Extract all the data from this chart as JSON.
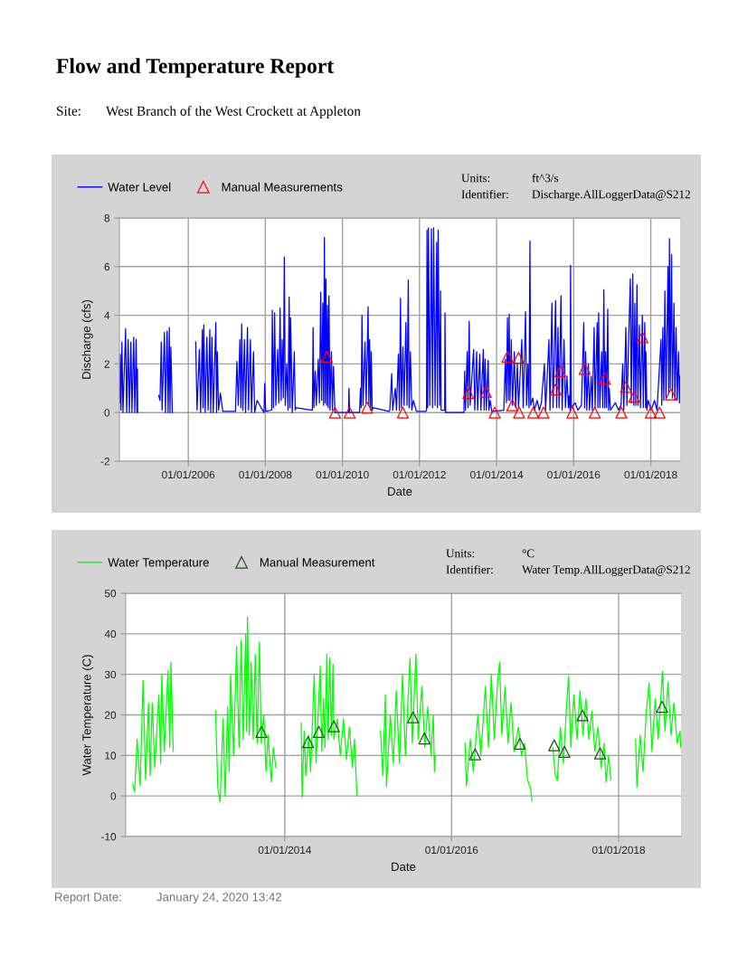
{
  "chart_data": [
    {
      "type": "line",
      "title": "Flow and Temperature Report",
      "subtitle": "Site:\tWest Branch of the West Crockett at Appleton",
      "xlabel": "Date",
      "ylabel": "Discharge (cfs)",
      "annotations": [
        "Units:\tft^3/s",
        "Identifier:\tDischarge.AllLoggerData@S212"
      ],
      "xlim": [
        "2004-03-19",
        "2018-10-06"
      ],
      "ylim": [
        -2,
        8
      ],
      "xticks": [
        {
          "value": "2006-01-01",
          "label": "01/01/2006"
        },
        {
          "value": "2008-01-01",
          "label": "01/01/2008"
        },
        {
          "value": "2010-01-01",
          "label": "01/01/2010"
        },
        {
          "value": "2012-01-01",
          "label": "01/01/2012"
        },
        {
          "value": "2014-01-01",
          "label": "01/01/2014"
        },
        {
          "value": "2016-01-01",
          "label": "01/01/2016"
        },
        {
          "value": "2018-01-01",
          "label": "01/01/2018"
        }
      ],
      "yticks": [
        -2,
        0,
        2,
        4,
        6,
        8
      ],
      "grid": true,
      "legend": "top left",
      "series": [
        {
          "name": "Water Level",
          "color": "#0000ff",
          "x": [
            "2004-03-21",
            "2004-03-28",
            "2004-04-03",
            "2004-04-12",
            "2004-04-22",
            "2004-05-17",
            "2004-05-27",
            "2004-06-10",
            "2004-06-22",
            "2004-07-06",
            "2004-07-16",
            "2004-08-02",
            "2004-08-12",
            "2004-08-25",
            "2004-09-01",
            "2004-09-06",
            "2004-09-08",
            "2004-12-01",
            "2005-03-27",
            "2005-04-08",
            "2005-04-20",
            "2005-04-28",
            "2005-05-20",
            "2005-05-30",
            "2005-06-14",
            "2005-06-24",
            "2005-07-05",
            "2005-07-12",
            "2005-07-20",
            "2005-08-03",
            "2005-11-01",
            "2006-03-12",
            "2006-03-25",
            "2006-04-16",
            "2006-04-28",
            "2006-05-14",
            "2006-05-21",
            "2006-05-28",
            "2006-06-10",
            "2006-06-26",
            "2006-07-08",
            "2006-07-24",
            "2006-08-02",
            "2006-08-13",
            "2006-08-25",
            "2006-09-19",
            "2006-09-26",
            "2006-10-03",
            "2006-10-15",
            "2006-11-01",
            "2006-11-24",
            "2007-03-17",
            "2007-03-24",
            "2007-04-07",
            "2007-04-20",
            "2007-05-05",
            "2007-05-14",
            "2007-05-22",
            "2007-06-02",
            "2007-06-17",
            "2007-06-28",
            "2007-07-16",
            "2007-07-26",
            "2007-08-13",
            "2007-08-23",
            "2007-09-11",
            "2007-09-22",
            "2007-10-15",
            "2007-11-21",
            "2007-12-20",
            "2007-12-26",
            "2008-01-05",
            "2008-03-01",
            "2008-03-07",
            "2008-03-18",
            "2008-03-29",
            "2008-04-10",
            "2008-04-27",
            "2008-05-08",
            "2008-05-20",
            "2008-05-30",
            "2008-06-09",
            "2008-06-20",
            "2008-06-29",
            "2008-07-08",
            "2008-07-22",
            "2008-08-03",
            "2008-08-14",
            "2008-08-21",
            "2008-08-28",
            "2008-09-12",
            "2008-10-02",
            "2008-10-10",
            "2008-10-16",
            "2009-03-22",
            "2009-03-29",
            "2009-04-05",
            "2009-04-18",
            "2009-04-28",
            "2009-05-17",
            "2009-05-28",
            "2009-06-09",
            "2009-06-18",
            "2009-06-29",
            "2009-07-06",
            "2009-07-14",
            "2009-07-21",
            "2009-07-28",
            "2009-08-05",
            "2009-08-12",
            "2009-08-19",
            "2009-08-26",
            "2009-09-05",
            "2009-09-18",
            "2009-09-28",
            "2009-10-08",
            "2009-10-22",
            "2010-02-27",
            "2010-03-04",
            "2010-03-09",
            "2010-06-12",
            "2010-06-21",
            "2010-06-28",
            "2010-07-05",
            "2010-07-15",
            "2010-08-03",
            "2010-08-14",
            "2010-09-01",
            "2010-09-08",
            "2010-09-15",
            "2010-09-25",
            "2010-10-01",
            "2010-10-10",
            "2010-10-20",
            "2011-03-20",
            "2011-03-26",
            "2011-04-13",
            "2011-04-22",
            "2011-05-17",
            "2011-05-28",
            "2011-06-15",
            "2011-06-25",
            "2011-07-05",
            "2011-07-14",
            "2011-07-28",
            "2011-08-08",
            "2011-08-25",
            "2011-09-05",
            "2011-09-17",
            "2011-09-25",
            "2011-10-07",
            "2011-10-20",
            "2011-11-04",
            "2011-12-03",
            "2012-03-01",
            "2012-03-08",
            "2012-03-12",
            "2012-03-19",
            "2012-03-26",
            "2012-04-08",
            "2012-04-24",
            "2012-05-03",
            "2012-05-14",
            "2012-05-28",
            "2012-06-12",
            "2012-06-19",
            "2012-06-26",
            "2012-07-10",
            "2012-07-19",
            "2012-07-24",
            "2012-08-27",
            "2012-08-30",
            "2012-09-05",
            "2013-02-25",
            "2013-03-04",
            "2013-03-12",
            "2013-03-28",
            "2013-04-05",
            "2013-04-16",
            "2013-04-25",
            "2013-05-28",
            "2013-06-08",
            "2013-06-26",
            "2013-07-05",
            "2013-07-25",
            "2013-08-05",
            "2013-08-28",
            "2013-09-05",
            "2013-09-14",
            "2013-09-25",
            "2013-10-13",
            "2013-10-20",
            "2013-11-01",
            "2013-11-16",
            "2014-03-10",
            "2014-03-25",
            "2014-04-03",
            "2014-04-14",
            "2014-04-22",
            "2014-04-30",
            "2014-05-08",
            "2014-05-20",
            "2014-06-01",
            "2014-06-18",
            "2014-06-30",
            "2014-07-16",
            "2014-07-28",
            "2014-08-28",
            "2014-09-10",
            "2014-10-02",
            "2014-10-12",
            "2014-10-24",
            "2014-11-04",
            "2014-11-13",
            "2014-11-20",
            "2014-12-10",
            "2014-12-25",
            "2015-01-20",
            "2015-02-10",
            "2015-03-01",
            "2015-03-30",
            "2015-04-10",
            "2015-05-12",
            "2015-05-22",
            "2015-06-09",
            "2015-06-20",
            "2015-07-14",
            "2015-07-24",
            "2015-08-06",
            "2015-08-16",
            "2015-09-03",
            "2015-09-14",
            "2015-10-02",
            "2015-10-15",
            "2015-10-30",
            "2015-11-12",
            "2015-11-20",
            "2015-11-28",
            "2015-12-03",
            "2015-12-10",
            "2016-01-15",
            "2016-02-10",
            "2016-03-15",
            "2016-04-06",
            "2016-04-14",
            "2016-04-24",
            "2016-05-05",
            "2016-05-19",
            "2016-05-30",
            "2016-06-16",
            "2016-06-26",
            "2016-07-13",
            "2016-07-22",
            "2016-08-11",
            "2016-08-18",
            "2016-08-25",
            "2016-09-05",
            "2016-09-23",
            "2016-10-03",
            "2016-10-13",
            "2016-10-22",
            "2016-10-30",
            "2016-11-08",
            "2016-11-19",
            "2016-11-27",
            "2016-12-03",
            "2016-12-15",
            "2017-01-30",
            "2017-03-01",
            "2017-03-25",
            "2017-04-10",
            "2017-04-20",
            "2017-05-10",
            "2017-05-20",
            "2017-06-21",
            "2017-06-30",
            "2017-07-14",
            "2017-07-24",
            "2017-08-03",
            "2017-08-12",
            "2017-08-23",
            "2017-09-01",
            "2017-09-15",
            "2017-09-25",
            "2017-10-13",
            "2017-10-22",
            "2017-11-05",
            "2017-11-13",
            "2017-11-16",
            "2017-11-25",
            "2017-12-08",
            "2018-01-05",
            "2018-02-05",
            "2018-03-01",
            "2018-04-08",
            "2018-04-15",
            "2018-04-25",
            "2018-05-04",
            "2018-05-15",
            "2018-05-25",
            "2018-06-13",
            "2018-06-20",
            "2018-06-27",
            "2018-07-05",
            "2018-07-17",
            "2018-07-25",
            "2018-08-09",
            "2018-08-17",
            "2018-08-29",
            "2018-09-08",
            "2018-09-21",
            "2018-09-30",
            "2018-10-04"
          ],
          "values": [
            0.4,
            2.4,
            0.1,
            2.9,
            0,
            3.45,
            0,
            3.0,
            0,
            2.9,
            0,
            3.1,
            0,
            3.0,
            0,
            1.8,
            0,
            null,
            0.7,
            0.5,
            2.9,
            0.1,
            3.3,
            0,
            3.35,
            0,
            3.5,
            0,
            2.7,
            0,
            null,
            2.9,
            0.1,
            2.6,
            0,
            3.4,
            0.2,
            3.6,
            0,
            3.1,
            0.1,
            3.4,
            0,
            3.1,
            0,
            3.7,
            0,
            2.5,
            0.1,
            0.8,
            0.05,
            0.05,
            0.05,
            2.1,
            0.3,
            3.0,
            0.2,
            3.65,
            0.1,
            3.0,
            0,
            3.5,
            0.1,
            3.0,
            0,
            2.5,
            0,
            0.5,
            0.2,
            0,
            1.2,
            0.05,
            0.1,
            4.2,
            0.2,
            4.1,
            0.3,
            2.6,
            0.4,
            4.3,
            0.5,
            3.0,
            0.6,
            6.4,
            0.3,
            2.0,
            0.1,
            4.75,
            0.2,
            3.9,
            0,
            2.5,
            0.1,
            0.2,
            0.1,
            3.5,
            0.2,
            1.7,
            0.3,
            2.2,
            0.4,
            4.95,
            0.5,
            4.5,
            0.3,
            7.2,
            0.4,
            5.5,
            0.3,
            4.4,
            0.2,
            4.8,
            0.1,
            2.5,
            0.1,
            1.9,
            0,
            0,
            1.0,
            0,
            0,
            1.0,
            0.2,
            4.0,
            0.3,
            2.9,
            0.4,
            4.35,
            0.3,
            3.0,
            0.1,
            2.5,
            0.1,
            0.2,
            0.05,
            0.1,
            1.6,
            0.1,
            1.0,
            0.1,
            2.4,
            0.1,
            4.7,
            0.2,
            2.7,
            0.3,
            3.7,
            0.3,
            5.45,
            0.2,
            2.5,
            0.1,
            0.5,
            0.05,
            0.05,
            0.1,
            7.5,
            0.2,
            7.6,
            0.3,
            7.55,
            0.2,
            7.6,
            0.3,
            7.0,
            0.2,
            7.5,
            0.3,
            5.0,
            0.1,
            0.1,
            4.1,
            0,
            0,
            1.7,
            0.1,
            2.5,
            0.2,
            3.75,
            0.3,
            2.6,
            0.1,
            2.5,
            0.1,
            2.4,
            0.1,
            2.6,
            0.1,
            2.2,
            0.1,
            2.15,
            0.1,
            0.5,
            0.05,
            0.1,
            2.2,
            0.4,
            3.9,
            0.5,
            4.05,
            0.5,
            3.0,
            0.3,
            2.5,
            0.2,
            2.0,
            0.2,
            3.0,
            0.2,
            4.15,
            0.3,
            2.0,
            0.2,
            7.05,
            0.3,
            0.6,
            0.1,
            0.5,
            0.1,
            0.4,
            2.0,
            0.1,
            3.0,
            0.1,
            4.5,
            0.2,
            4.6,
            0.2,
            3.5,
            0.2,
            4.8,
            0.1,
            3.0,
            0.2,
            1.5,
            0.2,
            0.7,
            0.1,
            6.05,
            0.2,
            0.4,
            0.1,
            0.3,
            3.7,
            0.2,
            2.5,
            0.1,
            2.0,
            0.1,
            1.5,
            0.1,
            3.5,
            0.2,
            3.7,
            0.2,
            4.1,
            0.2,
            2.5,
            0.2,
            5.05,
            0.2,
            2.5,
            0.2,
            4.25,
            0.1,
            1.0,
            0.1,
            0.4,
            0.1,
            0.3,
            2.0,
            0.1,
            3.5,
            0.3,
            5.5,
            0.4,
            5.7,
            0.3,
            4.5,
            0.3,
            5.25,
            0.3,
            3.6,
            0.2,
            4.0,
            0.2,
            3.7,
            0.2,
            2.5,
            0.1,
            0.5,
            0.1,
            0.5,
            0.1,
            3.0,
            0.3,
            3.5,
            0.5,
            5.0,
            0.6,
            6.0,
            0.8,
            7.15,
            1.0,
            6.5,
            0.6,
            4.5,
            0.5,
            3.5,
            0.5,
            2.5,
            0.4,
            1.5
          ]
        },
        {
          "name": "Manual Measurements",
          "type": "scatter",
          "color": "#ff0000",
          "marker": "triangle",
          "x": [
            "2009-08-06",
            "2009-10-22",
            "2010-03-10",
            "2010-08-23",
            "2011-07-27",
            "2013-04-08",
            "2013-09-20",
            "2013-12-14",
            "2014-04-14",
            "2014-05-29",
            "2014-07-28",
            "2014-08-02",
            "2014-12-14",
            "2015-03-21",
            "2015-07-14",
            "2015-08-29",
            "2015-12-20",
            "2016-04-14",
            "2016-07-19",
            "2016-10-22",
            "2017-03-28",
            "2017-05-10",
            "2017-07-26",
            "2017-10-13",
            "2018-01-01",
            "2018-03-25",
            "2018-07-11"
          ],
          "values": [
            2.3,
            0,
            0,
            0.2,
            0,
            0.8,
            0.85,
            0,
            2.3,
            0.3,
            2.25,
            0,
            0,
            0,
            0.95,
            1.7,
            0,
            1.8,
            0,
            1.4,
            0,
            1.05,
            0.65,
            3.1,
            0,
            0,
            0.75
          ]
        }
      ]
    },
    {
      "type": "line",
      "xlabel": "Date",
      "ylabel": "Water Temperature (C)",
      "annotations": [
        "Units:\t°C",
        "Identifier:\tWater Temp.AllLoggerData@S212",
        "Report Date:\tJanuary 24, 2020 13:42"
      ],
      "xlim": [
        "2012-02-05",
        "2018-10-01"
      ],
      "ylim": [
        -10,
        50
      ],
      "xticks": [
        {
          "value": "2014-01-01",
          "label": "01/01/2014"
        },
        {
          "value": "2016-01-01",
          "label": "01/01/2016"
        },
        {
          "value": "2018-01-01",
          "label": "01/01/2018"
        }
      ],
      "yticks": [
        -10,
        0,
        10,
        20,
        30,
        40,
        50
      ],
      "grid": true,
      "legend": "top left",
      "series": [
        {
          "name": "Water Temperature",
          "color": "#00ff00",
          "x": [
            "2012-03-06",
            "2012-03-15",
            "2012-03-26",
            "2012-04-08",
            "2012-04-21",
            "2012-05-02",
            "2012-05-15",
            "2012-05-22",
            "2012-05-31",
            "2012-06-11",
            "2012-06-29",
            "2012-07-07",
            "2012-07-12",
            "2012-07-23",
            "2012-08-08",
            "2012-08-16",
            "2012-08-21",
            "2012-08-31",
            "2012-11-01",
            "2013-03-04",
            "2013-03-14",
            "2013-03-24",
            "2013-04-06",
            "2013-04-15",
            "2013-04-26",
            "2013-05-03",
            "2013-05-09",
            "2013-05-22",
            "2013-06-04",
            "2013-06-15",
            "2013-06-24",
            "2013-07-03",
            "2013-07-14",
            "2013-07-18",
            "2013-07-22",
            "2013-07-30",
            "2013-08-07",
            "2013-08-16",
            "2013-08-25",
            "2013-09-02",
            "2013-09-12",
            "2013-09-20",
            "2013-10-01",
            "2013-10-11",
            "2013-10-20",
            "2013-11-03",
            "2013-11-12",
            "2013-11-23",
            "2014-01-01",
            "2014-03-14",
            "2014-03-18",
            "2014-03-27",
            "2014-04-03",
            "2014-04-16",
            "2014-04-24",
            "2014-05-10",
            "2014-05-18",
            "2014-06-05",
            "2014-06-12",
            "2014-06-20",
            "2014-06-26",
            "2014-07-04",
            "2014-07-10",
            "2014-07-17",
            "2014-07-24",
            "2014-07-31",
            "2014-08-04",
            "2014-08-19",
            "2014-09-01",
            "2014-09-15",
            "2014-09-28",
            "2014-10-11",
            "2014-10-24",
            "2014-11-02",
            "2014-11-13",
            "2014-12-20",
            "2015-02-24",
            "2015-03-06",
            "2015-03-17",
            "2015-03-22",
            "2015-04-08",
            "2015-04-21",
            "2015-05-04",
            "2015-05-18",
            "2015-05-31",
            "2015-06-13",
            "2015-07-03",
            "2015-07-13",
            "2015-07-29",
            "2015-08-08",
            "2015-08-24",
            "2015-09-06",
            "2015-09-19",
            "2015-10-03",
            "2015-10-13",
            "2015-10-18",
            "2015-10-22",
            "2015-12-15",
            "2016-02-29",
            "2016-03-06",
            "2016-03-23",
            "2016-04-05",
            "2016-04-25",
            "2016-05-08",
            "2016-05-28",
            "2016-06-10",
            "2016-06-23",
            "2016-07-06",
            "2016-07-20",
            "2016-07-29",
            "2016-08-08",
            "2016-08-22",
            "2016-09-04",
            "2016-09-17",
            "2016-09-30",
            "2016-10-20",
            "2016-11-02",
            "2016-11-15",
            "2016-11-28",
            "2016-12-11",
            "2016-12-18",
            "2017-01-20",
            "2017-03-19",
            "2017-03-30",
            "2017-04-08",
            "2017-04-21",
            "2017-05-04",
            "2017-05-18",
            "2017-05-27",
            "2017-06-06",
            "2017-06-19",
            "2017-07-03",
            "2017-07-16",
            "2017-07-29",
            "2017-08-11",
            "2017-08-24",
            "2017-09-06",
            "2017-09-19",
            "2017-10-03",
            "2017-10-16",
            "2017-10-29",
            "2017-11-07",
            "2017-11-18",
            "2017-11-28",
            "2018-01-15",
            "2018-03-16",
            "2018-03-22",
            "2018-04-05",
            "2018-04-18",
            "2018-05-01",
            "2018-05-14",
            "2018-05-27",
            "2018-06-10",
            "2018-06-23",
            "2018-07-12",
            "2018-07-23",
            "2018-08-05",
            "2018-08-18",
            "2018-08-31",
            "2018-09-14",
            "2018-09-27",
            "2018-09-29"
          ],
          "values": [
            3.0,
            1.0,
            14,
            2.5,
            28.5,
            4,
            23,
            5,
            23,
            7,
            25,
            8,
            30,
            11,
            31,
            12,
            33,
            11,
            null,
            21,
            2,
            -1.4,
            19,
            0,
            22,
            6,
            30,
            10,
            37,
            12,
            38.5,
            14,
            40,
            16,
            44.2,
            15,
            33,
            14,
            35,
            13,
            38,
            13,
            20,
            6,
            15,
            3.5,
            12,
            7,
            null,
            18,
            -0.3,
            16,
            5,
            15,
            6,
            30,
            8,
            32,
            11,
            24,
            12,
            35,
            14,
            34,
            15,
            32.5,
            14,
            19,
            10,
            19,
            9,
            17,
            7,
            14,
            0,
            null,
            16,
            5,
            25,
            2.3,
            20,
            8,
            26,
            8,
            30,
            10,
            34,
            13,
            35,
            14,
            27,
            12,
            22,
            10,
            20,
            6,
            10,
            null,
            13,
            2.5,
            14,
            6,
            20,
            10,
            27,
            12,
            30,
            14,
            28,
            33,
            15,
            27,
            13,
            23,
            11,
            17,
            10,
            13,
            4,
            2,
            -1.2,
            null,
            12,
            5,
            3.8,
            17,
            8,
            22,
            29.5,
            12,
            25,
            14,
            26,
            15,
            24,
            14,
            21,
            11,
            17,
            7,
            13,
            3.5,
            10,
            4,
            null,
            14,
            2.2,
            15,
            6,
            20,
            27.9,
            11,
            24,
            14,
            30.7,
            16,
            28,
            15,
            23,
            13,
            16,
            12
          ]
        },
        {
          "name": "Manual Measurement",
          "type": "scatter",
          "color": "#1f4f1f",
          "marker": "triangle",
          "x": [
            "2013-09-21",
            "2014-04-13",
            "2014-05-30",
            "2014-08-04",
            "2015-07-16",
            "2015-09-04",
            "2016-04-13",
            "2016-10-26",
            "2017-03-25",
            "2017-05-09",
            "2017-07-27",
            "2017-10-12",
            "2018-07-10"
          ],
          "values": [
            15.8,
            13.3,
            15.8,
            17.2,
            19.4,
            14.2,
            10.3,
            12.9,
            12.5,
            10.9,
            19.9,
            10.5,
            22.0
          ]
        }
      ]
    }
  ]
}
